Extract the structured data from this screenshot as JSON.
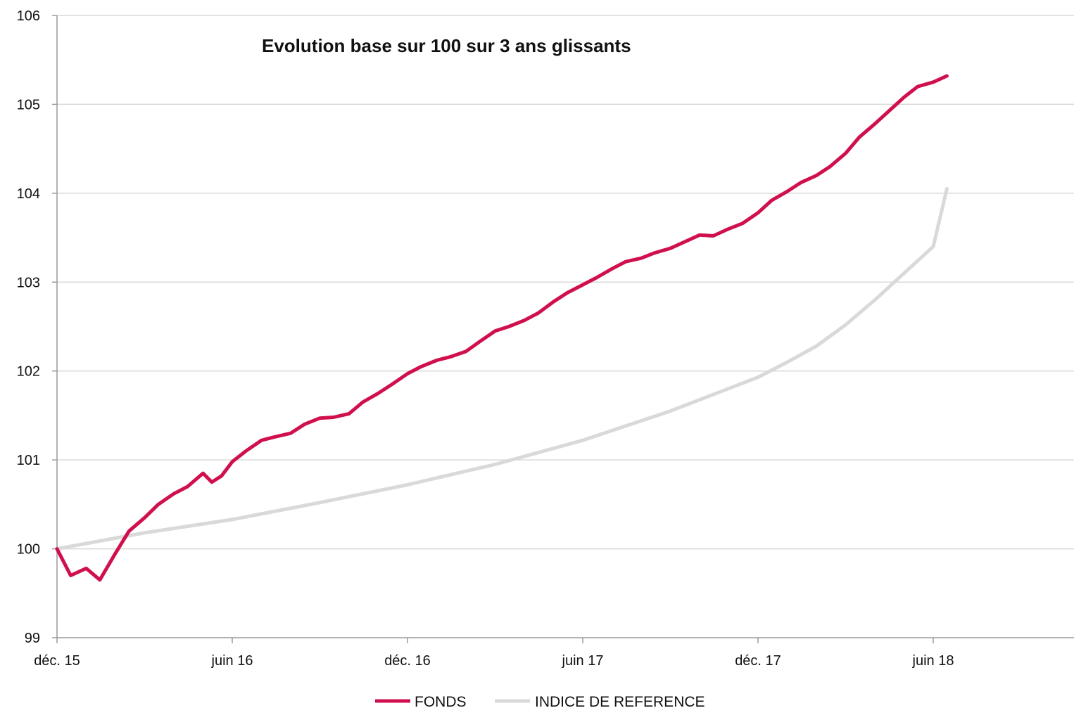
{
  "chart_data": {
    "type": "line",
    "title": "Evolution base sur 100 sur 3 ans glissants",
    "xlabel": "",
    "ylabel": "",
    "ylim": [
      99,
      106
    ],
    "yticks": [
      "99",
      "100",
      "101",
      "102",
      "103",
      "104",
      "105",
      "106"
    ],
    "x_range": [
      "2015-12",
      "2018-11"
    ],
    "xticks": [
      {
        "label": "déc. 15",
        "month": "2015-12"
      },
      {
        "label": "juin 16",
        "month": "2016-06"
      },
      {
        "label": "déc. 16",
        "month": "2016-12"
      },
      {
        "label": "juin 17",
        "month": "2017-06"
      },
      {
        "label": "déc. 17",
        "month": "2017-12"
      },
      {
        "label": "juin 18",
        "month": "2018-06"
      }
    ],
    "grid": "horizontal",
    "legend_position": "bottom",
    "series": [
      {
        "name": "FONDS",
        "color": "#d0104c",
        "points": [
          [
            "2015-12-01",
            100.0
          ],
          [
            "2015-12-15",
            99.7
          ],
          [
            "2016-01-01",
            99.78
          ],
          [
            "2016-01-15",
            99.65
          ],
          [
            "2016-02-01",
            99.95
          ],
          [
            "2016-02-15",
            100.2
          ],
          [
            "2016-03-01",
            100.35
          ],
          [
            "2016-03-15",
            100.5
          ],
          [
            "2016-04-01",
            100.62
          ],
          [
            "2016-04-15",
            100.7
          ],
          [
            "2016-05-01",
            100.85
          ],
          [
            "2016-05-10",
            100.75
          ],
          [
            "2016-05-20",
            100.82
          ],
          [
            "2016-06-01",
            100.98
          ],
          [
            "2016-06-15",
            101.1
          ],
          [
            "2016-07-01",
            101.22
          ],
          [
            "2016-07-15",
            101.26
          ],
          [
            "2016-08-01",
            101.3
          ],
          [
            "2016-08-15",
            101.4
          ],
          [
            "2016-09-01",
            101.47
          ],
          [
            "2016-09-15",
            101.48
          ],
          [
            "2016-10-01",
            101.52
          ],
          [
            "2016-10-15",
            101.65
          ],
          [
            "2016-11-01",
            101.75
          ],
          [
            "2016-11-15",
            101.85
          ],
          [
            "2016-12-01",
            101.97
          ],
          [
            "2016-12-15",
            102.05
          ],
          [
            "2017-01-01",
            102.12
          ],
          [
            "2017-01-15",
            102.16
          ],
          [
            "2017-02-01",
            102.22
          ],
          [
            "2017-02-15",
            102.33
          ],
          [
            "2017-03-01",
            102.45
          ],
          [
            "2017-03-15",
            102.5
          ],
          [
            "2017-04-01",
            102.57
          ],
          [
            "2017-04-15",
            102.65
          ],
          [
            "2017-05-01",
            102.78
          ],
          [
            "2017-05-15",
            102.88
          ],
          [
            "2017-06-01",
            102.97
          ],
          [
            "2017-06-15",
            103.05
          ],
          [
            "2017-07-01",
            103.15
          ],
          [
            "2017-07-15",
            103.23
          ],
          [
            "2017-08-01",
            103.27
          ],
          [
            "2017-08-15",
            103.33
          ],
          [
            "2017-09-01",
            103.38
          ],
          [
            "2017-09-15",
            103.45
          ],
          [
            "2017-10-01",
            103.53
          ],
          [
            "2017-10-15",
            103.52
          ],
          [
            "2017-11-01",
            103.6
          ],
          [
            "2017-11-15",
            103.66
          ],
          [
            "2017-12-01",
            103.78
          ],
          [
            "2017-12-15",
            103.92
          ],
          [
            "2018-01-01",
            104.02
          ],
          [
            "2018-01-15",
            104.12
          ],
          [
            "2018-02-01",
            104.2
          ],
          [
            "2018-02-15",
            104.3
          ],
          [
            "2018-03-01",
            104.45
          ],
          [
            "2018-03-15",
            104.63
          ],
          [
            "2018-04-01",
            104.78
          ],
          [
            "2018-04-15",
            104.92
          ],
          [
            "2018-05-01",
            105.08
          ],
          [
            "2018-05-15",
            105.2
          ],
          [
            "2018-06-01",
            105.25
          ],
          [
            "2018-06-15",
            105.32
          ]
        ]
      },
      {
        "name": "INDICE DE REFERENCE",
        "color": "#d9d9d9",
        "points": [
          [
            "2015-12-01",
            100.0
          ],
          [
            "2016-03-01",
            100.18
          ],
          [
            "2016-06-01",
            100.33
          ],
          [
            "2016-09-01",
            100.52
          ],
          [
            "2016-12-01",
            100.72
          ],
          [
            "2017-03-01",
            100.95
          ],
          [
            "2017-06-01",
            101.22
          ],
          [
            "2017-09-01",
            101.55
          ],
          [
            "2017-12-01",
            101.93
          ],
          [
            "2018-01-01",
            102.1
          ],
          [
            "2018-02-01",
            102.28
          ],
          [
            "2018-03-01",
            102.52
          ],
          [
            "2018-04-01",
            102.8
          ],
          [
            "2018-05-01",
            103.1
          ],
          [
            "2018-06-01",
            103.4
          ],
          [
            "2018-06-15",
            104.05
          ]
        ]
      }
    ]
  }
}
